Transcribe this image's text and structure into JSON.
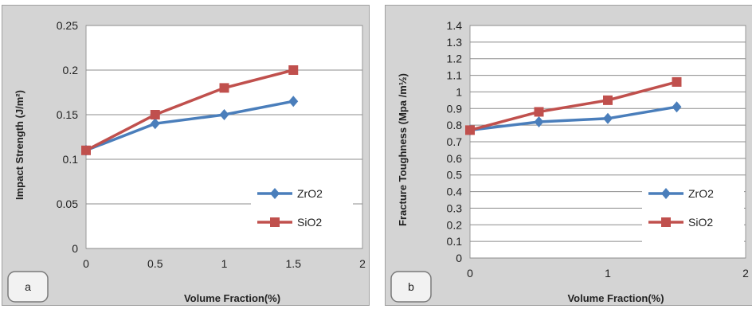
{
  "colors": {
    "zro2": "#4a7ebb",
    "sio2": "#c0504d",
    "grid": "#8c8c8c",
    "plot_bg": "#ffffff",
    "panel_bg": "#d4d4d4"
  },
  "chart_data": [
    {
      "type": "line",
      "panel_label": "a",
      "xlabel": "Volume Fraction(%)",
      "ylabel": "Impact Strength (J/m²)",
      "xlim": [
        0,
        2
      ],
      "ylim": [
        0,
        0.25
      ],
      "x_ticks": [
        "0",
        "0.5",
        "1",
        "1.5",
        "2"
      ],
      "y_ticks": [
        "0",
        "0.05",
        "0.1",
        "0.15",
        "0.2",
        "0.25"
      ],
      "grid": true,
      "legend_position": "bottom-right",
      "series": [
        {
          "name": "ZrO2",
          "x": [
            0,
            0.5,
            1,
            1.5
          ],
          "values": [
            0.11,
            0.14,
            0.15,
            0.165
          ],
          "marker": "diamond"
        },
        {
          "name": "SiO2",
          "x": [
            0,
            0.5,
            1,
            1.5
          ],
          "values": [
            0.11,
            0.15,
            0.18,
            0.2
          ],
          "marker": "square"
        }
      ]
    },
    {
      "type": "line",
      "panel_label": "b",
      "xlabel": "Volume Fraction(%)",
      "ylabel": "Fracture Toughness  (Mpa /m½)",
      "xlim": [
        0,
        2
      ],
      "ylim": [
        0,
        1.4
      ],
      "x_ticks": [
        "0",
        "1",
        "2"
      ],
      "y_ticks": [
        "0",
        "0.1",
        "0.2",
        "0.3",
        "0.4",
        "0.5",
        "0.6",
        "0.7",
        "0.8",
        "0.9",
        "1",
        "1.1",
        "1.2",
        "1.3",
        "1.4"
      ],
      "grid": true,
      "legend_position": "bottom-right",
      "series": [
        {
          "name": "ZrO2",
          "x": [
            0,
            0.5,
            1,
            1.5
          ],
          "values": [
            0.77,
            0.82,
            0.84,
            0.91
          ],
          "marker": "diamond"
        },
        {
          "name": "SiO2",
          "x": [
            0,
            0.5,
            1,
            1.5
          ],
          "values": [
            0.77,
            0.88,
            0.95,
            1.06
          ],
          "marker": "square"
        }
      ]
    }
  ]
}
